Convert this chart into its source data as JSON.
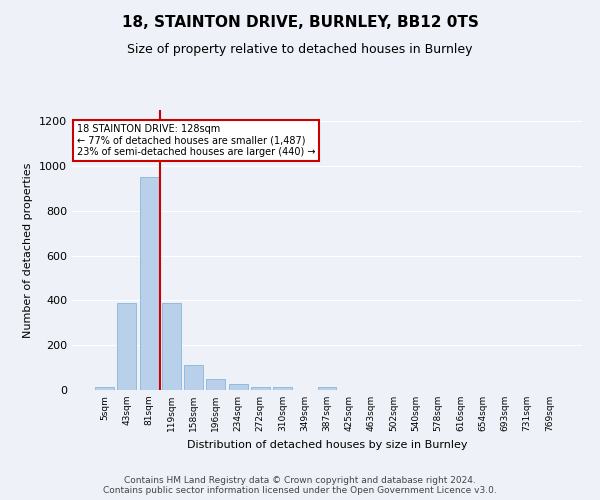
{
  "title": "18, STAINTON DRIVE, BURNLEY, BB12 0TS",
  "subtitle": "Size of property relative to detached houses in Burnley",
  "xlabel": "Distribution of detached houses by size in Burnley",
  "ylabel": "Number of detached properties",
  "categories": [
    "5sqm",
    "43sqm",
    "81sqm",
    "119sqm",
    "158sqm",
    "196sqm",
    "234sqm",
    "272sqm",
    "310sqm",
    "349sqm",
    "387sqm",
    "425sqm",
    "463sqm",
    "502sqm",
    "540sqm",
    "578sqm",
    "616sqm",
    "654sqm",
    "693sqm",
    "731sqm",
    "769sqm"
  ],
  "values": [
    15,
    390,
    950,
    390,
    110,
    50,
    25,
    15,
    12,
    0,
    12,
    0,
    0,
    0,
    0,
    0,
    0,
    0,
    0,
    0,
    0
  ],
  "bar_color": "#b8d0ea",
  "bar_edgecolor": "#7aadd4",
  "bar_linewidth": 0.5,
  "redline_index": 3,
  "redline_color": "#cc0000",
  "annotation_text": "18 STAINTON DRIVE: 128sqm\n← 77% of detached houses are smaller (1,487)\n23% of semi-detached houses are larger (440) →",
  "annotation_box_color": "#ffffff",
  "annotation_box_edgecolor": "#cc0000",
  "ylim": [
    0,
    1250
  ],
  "yticks": [
    0,
    200,
    400,
    600,
    800,
    1000,
    1200
  ],
  "bg_color": "#eef2f8",
  "plot_bg_color": "#eef2f8",
  "grid_color": "#ffffff",
  "footer_line1": "Contains HM Land Registry data © Crown copyright and database right 2024.",
  "footer_line2": "Contains public sector information licensed under the Open Government Licence v3.0.",
  "title_fontsize": 11,
  "subtitle_fontsize": 9,
  "footer_fontsize": 6.5,
  "annotation_fontsize": 7,
  "ylabel_fontsize": 8,
  "xlabel_fontsize": 8,
  "ytick_fontsize": 8,
  "xtick_fontsize": 6.5
}
